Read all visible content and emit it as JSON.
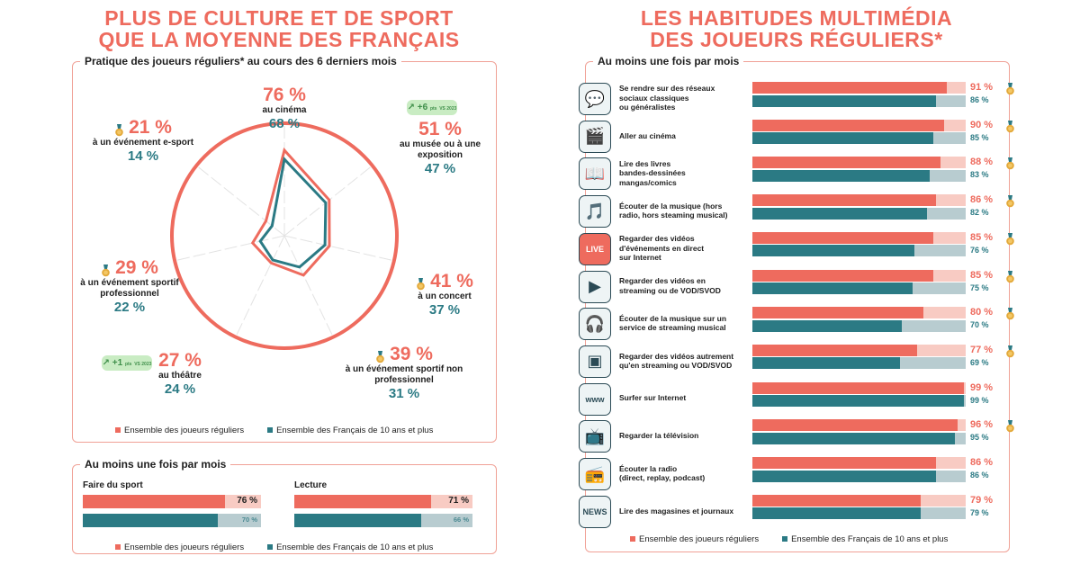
{
  "left": {
    "title_line1": "PLUS DE CULTURE ET DE SPORT",
    "title_line2": "QUE LA MOYENNE DES FRANÇAIS",
    "radar_panel_label": "Pratique des joueurs réguliers* au cours des 6 derniers mois",
    "bottom_panel_label": "Au moins une fois par mois",
    "legend_players": "Ensemble des joueurs réguliers",
    "legend_french": "Ensemble des Français de 10 ans et plus",
    "badges": [
      {
        "text": "+6",
        "unit": "pts",
        "sub": "VS 2023"
      },
      {
        "text": "+1",
        "unit": "pts",
        "sub": "VS 2023"
      }
    ]
  },
  "right": {
    "title_line1": "LES HABITUDES MULTIMÉDIA",
    "title_line2": "DES JOUEURS RÉGULIERS*",
    "panel_label": "Au moins une fois par mois",
    "legend_players": "Ensemble des joueurs réguliers",
    "legend_french": "Ensemble des Français de 10 ans et plus"
  },
  "colors": {
    "coral": "#ee6b5e",
    "teal": "#2b7a84",
    "coral_light": "#f8cbc3",
    "teal_light": "#b8ccd0",
    "border": "#f0a196"
  },
  "chart_data": [
    {
      "type": "radar",
      "title": "Pratique des joueurs réguliers* au cours des 6 derniers mois",
      "categories": [
        "au cinéma",
        "au musée ou à une exposition",
        "à un concert",
        "à un événement sportif non professionnel",
        "au théâtre",
        "à un événement sportif professionnel",
        "à un événement e-sport"
      ],
      "series": [
        {
          "name": "Ensemble des joueurs réguliers",
          "values": [
            76,
            51,
            41,
            39,
            27,
            29,
            21
          ]
        },
        {
          "name": "Ensemble des Français de 10 ans et plus",
          "values": [
            68,
            47,
            37,
            31,
            24,
            22,
            14
          ]
        }
      ],
      "labels": [
        {
          "p1": "76 %",
          "label": "au cinéma",
          "p2": "68 %"
        },
        {
          "p1": "51 %",
          "label": "au musée ou à une exposition",
          "p2": "47 %"
        },
        {
          "p1": "41 %",
          "label": "à un concert",
          "p2": "37 %"
        },
        {
          "p1": "39 %",
          "label": "à un événement sportif non professionnel",
          "p2": "31 %"
        },
        {
          "p1": "27 %",
          "label": "au théâtre",
          "p2": "24 %"
        },
        {
          "p1": "29 %",
          "label": "à un événement sportif professionnel",
          "p2": "22 %"
        },
        {
          "p1": "21 %",
          "label": "à un événement e-sport",
          "p2": "14 %"
        }
      ],
      "legend": "bottom"
    },
    {
      "type": "bar",
      "title": "Au moins une fois par mois",
      "categories": [
        "Faire du sport",
        "Lecture"
      ],
      "series": [
        {
          "name": "Ensemble des joueurs réguliers",
          "values": [
            76,
            71
          ],
          "labels": [
            "76 %",
            "71 %"
          ]
        },
        {
          "name": "Ensemble des Français de 10 ans et plus",
          "values": [
            70,
            66
          ],
          "labels": [
            "70 %",
            "66 %"
          ]
        }
      ],
      "legend": "bottom"
    },
    {
      "type": "bar",
      "title": "Au moins une fois par mois",
      "categories": [
        "Se rendre sur des réseaux sociaux classiques ou généralistes",
        "Aller au cinéma",
        "Lire des livres bandes-dessinées mangas/comics",
        "Écouter de la musique (hors radio, hors steaming musical)",
        "Regarder des vidéos d'événements en direct sur Internet",
        "Regarder des vidéos en streaming ou de VOD/SVOD",
        "Écouter de la musique sur un service de streaming musical",
        "Regarder des vidéos autrement qu'en streaming ou VOD/SVOD",
        "Surfer sur Internet",
        "Regarder la télévision",
        "Écouter la radio (direct, replay, podcast)",
        "Lire des magasines et journaux"
      ],
      "label_lines": [
        [
          "Se rendre sur des réseaux",
          "sociaux classiques",
          "ou généralistes"
        ],
        [
          "Aller au cinéma"
        ],
        [
          "Lire des livres",
          "bandes-dessinées",
          "mangas/comics"
        ],
        [
          "Écouter de la musique (hors",
          "radio, hors steaming musical)"
        ],
        [
          "Regarder des vidéos",
          "d'événements en direct",
          "sur Internet"
        ],
        [
          "Regarder des vidéos en",
          "streaming ou de VOD/SVOD"
        ],
        [
          "Écouter de la musique sur un",
          "service de streaming musical"
        ],
        [
          "Regarder des vidéos autrement",
          "qu'en streaming ou VOD/SVOD"
        ],
        [
          "Surfer sur Internet"
        ],
        [
          "Regarder la télévision"
        ],
        [
          "Écouter la radio",
          "(direct, replay, podcast)"
        ],
        [
          "Lire des magasines et journaux"
        ]
      ],
      "icons": [
        "social-media-icon",
        "cinema-clapper-icon",
        "books-icon",
        "music-player-icon",
        "live-icon",
        "video-play-icon",
        "headphones-icon",
        "video-screen-icon",
        "www-icon",
        "television-icon",
        "radio-icon",
        "newspaper-icon"
      ],
      "series": [
        {
          "name": "Ensemble des joueurs réguliers",
          "values": [
            91,
            90,
            88,
            86,
            85,
            85,
            80,
            77,
            99,
            96,
            86,
            79
          ],
          "labels": [
            "91 %",
            "90 %",
            "88 %",
            "86 %",
            "85 %",
            "85 %",
            "80 %",
            "77 %",
            "99 %",
            "96 %",
            "86 %",
            "79 %"
          ]
        },
        {
          "name": "Ensemble des Français de 10 ans et plus",
          "values": [
            86,
            85,
            83,
            82,
            76,
            75,
            70,
            69,
            99,
            95,
            86,
            79
          ],
          "labels": [
            "86 %",
            "85 %",
            "83 %",
            "82 %",
            "76 %",
            "75 %",
            "70 %",
            "69 %",
            "99 %",
            "95 %",
            "86 %",
            "79 %"
          ]
        }
      ],
      "xlim": [
        0,
        100
      ],
      "legend": "bottom"
    }
  ]
}
